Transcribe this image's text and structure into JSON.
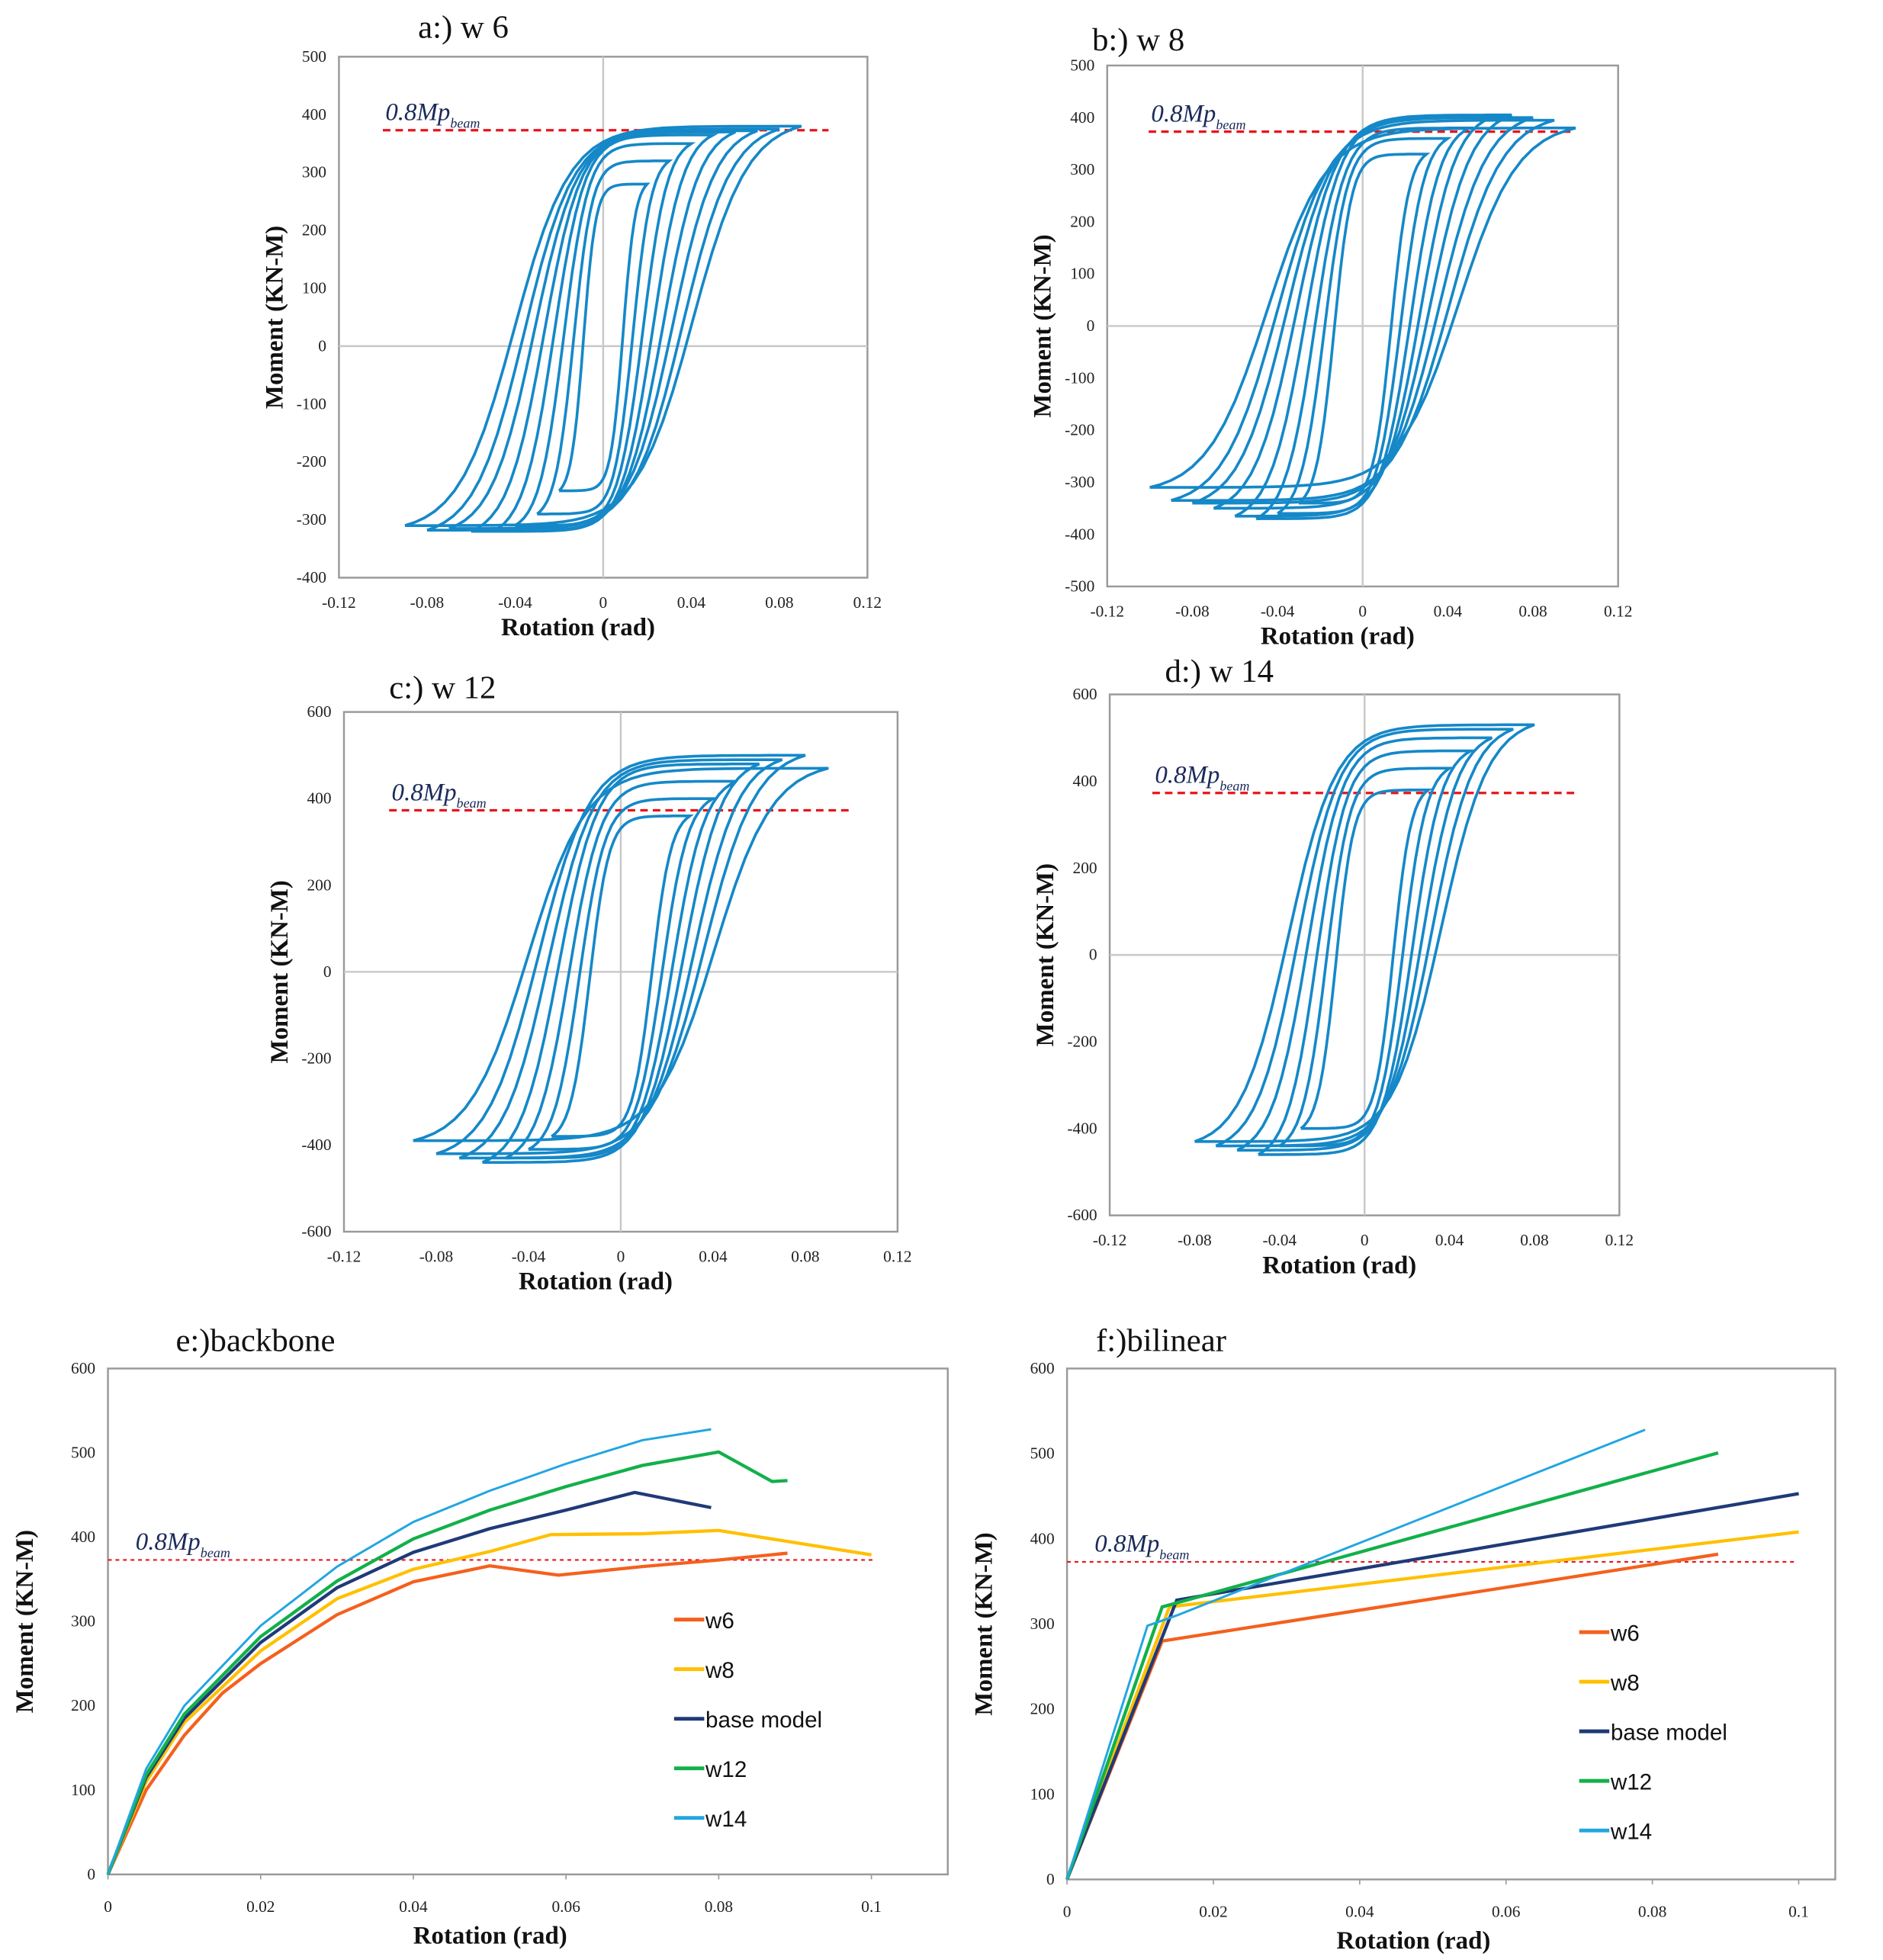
{
  "chart_data": [
    {
      "id": "a",
      "type": "line",
      "title": "a:) w 6",
      "xlabel": "Rotation (rad)",
      "ylabel": "Moment (KN-M)",
      "xlim": [
        -0.12,
        0.12
      ],
      "ylim": [
        -400,
        500
      ],
      "xticks": [
        -0.12,
        -0.08,
        -0.04,
        0,
        0.04,
        0.08,
        0.12
      ],
      "yticks": [
        -400,
        -300,
        -200,
        -100,
        0,
        100,
        200,
        300,
        400,
        500
      ],
      "reference": {
        "label": "0.8Mp",
        "subscript": "beam",
        "value": 373
      },
      "color": "#1588c8",
      "cycles": {
        "amplitudes": [
          0.02,
          0.03,
          0.04,
          0.05,
          0.06,
          0.07,
          0.08,
          0.09
        ],
        "positive_peaks": [
          280,
          320,
          350,
          365,
          370,
          372,
          375,
          380
        ],
        "negative_peaks": [
          -250,
          -290,
          -310,
          -320,
          -320,
          -315,
          -318,
          -310
        ]
      }
    },
    {
      "id": "b",
      "type": "line",
      "title": "b:) w 8",
      "xlabel": "Rotation (rad)",
      "ylabel": "Moment (KN-M)",
      "xlim": [
        -0.12,
        0.12
      ],
      "ylim": [
        -500,
        500
      ],
      "xticks": [
        -0.12,
        -0.08,
        -0.04,
        0,
        0.04,
        0.08,
        0.12
      ],
      "yticks": [
        -500,
        -400,
        -300,
        -200,
        -100,
        0,
        100,
        200,
        300,
        400,
        500
      ],
      "reference": {
        "label": "0.8Mp",
        "subscript": "beam",
        "value": 373
      },
      "color": "#1588c8",
      "cycles": {
        "amplitudes": [
          0.03,
          0.04,
          0.05,
          0.06,
          0.07,
          0.08,
          0.09,
          0.1
        ],
        "positive_peaks": [
          330,
          360,
          380,
          400,
          405,
          400,
          395,
          380
        ],
        "negative_peaks": [
          -340,
          -360,
          -370,
          -365,
          -350,
          -340,
          -335,
          -310
        ]
      }
    },
    {
      "id": "c",
      "type": "line",
      "title": "c:) w 12",
      "xlabel": "Rotation  (rad)",
      "ylabel": "Moment (KN-M)",
      "xlim": [
        -0.12,
        0.12
      ],
      "ylim": [
        -600,
        600
      ],
      "xticks": [
        -0.12,
        -0.08,
        -0.04,
        0,
        0.04,
        0.08,
        0.12
      ],
      "yticks": [
        -600,
        -400,
        -200,
        0,
        200,
        400,
        600
      ],
      "reference": {
        "label": "0.8Mp",
        "subscript": "beam",
        "value": 373
      },
      "color": "#1588c8",
      "cycles": {
        "amplitudes": [
          0.03,
          0.04,
          0.05,
          0.06,
          0.07,
          0.08,
          0.09
        ],
        "positive_peaks": [
          360,
          400,
          440,
          480,
          490,
          500,
          470
        ],
        "negative_peaks": [
          -380,
          -410,
          -430,
          -440,
          -430,
          -420,
          -390
        ]
      }
    },
    {
      "id": "d",
      "type": "line",
      "title": "d:) w 14",
      "xlabel": "Rotation (rad)",
      "ylabel": "Moment (KN-M)",
      "xlim": [
        -0.12,
        0.12
      ],
      "ylim": [
        -600,
        600
      ],
      "xticks": [
        -0.12,
        -0.08,
        -0.04,
        0,
        0.04,
        0.08,
        0.12
      ],
      "yticks": [
        -600,
        -400,
        -200,
        0,
        200,
        400,
        600
      ],
      "reference": {
        "label": "0.8Mp",
        "subscript": "beam",
        "value": 373
      },
      "color": "#1588c8",
      "cycles": {
        "amplitudes": [
          0.03,
          0.04,
          0.05,
          0.06,
          0.07,
          0.08
        ],
        "positive_peaks": [
          380,
          430,
          470,
          500,
          520,
          530
        ],
        "negative_peaks": [
          -400,
          -440,
          -460,
          -450,
          -440,
          -430
        ]
      }
    },
    {
      "id": "e",
      "type": "line",
      "title": "e:)backbone",
      "xlabel": "Rotation (rad)",
      "ylabel": "Moment (KN-M)",
      "xlim": [
        0,
        0.11
      ],
      "ylim": [
        0,
        600
      ],
      "xticks": [
        0,
        0.02,
        0.04,
        0.06,
        0.08,
        0.1
      ],
      "yticks": [
        0,
        100,
        200,
        300,
        400,
        500,
        600
      ],
      "reference": {
        "label": "0.8Mp",
        "subscript": "beam",
        "value": 373
      },
      "legend": "right",
      "series": [
        {
          "name": "w6",
          "color": "#f4601e",
          "x": [
            0,
            0.005,
            0.01,
            0.015,
            0.02,
            0.03,
            0.04,
            0.05,
            0.059,
            0.07,
            0.08,
            0.089
          ],
          "y": [
            0,
            100,
            165,
            215,
            250,
            308,
            347,
            366,
            355,
            365,
            373,
            381
          ]
        },
        {
          "name": "w8",
          "color": "#ffc000",
          "x": [
            0,
            0.005,
            0.01,
            0.02,
            0.03,
            0.04,
            0.05,
            0.058,
            0.07,
            0.08,
            0.1
          ],
          "y": [
            0,
            110,
            180,
            265,
            327,
            362,
            383,
            403,
            404,
            408,
            379
          ]
        },
        {
          "name": "base model",
          "color": "#1f3a78",
          "x": [
            0,
            0.005,
            0.01,
            0.02,
            0.03,
            0.04,
            0.05,
            0.06,
            0.069,
            0.079
          ],
          "y": [
            0,
            115,
            185,
            275,
            340,
            382,
            410,
            432,
            453,
            435
          ]
        },
        {
          "name": "w12",
          "color": "#12b04a",
          "x": [
            0,
            0.005,
            0.01,
            0.02,
            0.03,
            0.04,
            0.05,
            0.06,
            0.07,
            0.08,
            0.087,
            0.089
          ],
          "y": [
            0,
            118,
            190,
            282,
            348,
            398,
            432,
            460,
            485,
            501,
            466,
            467
          ]
        },
        {
          "name": "w14",
          "color": "#21a6e0",
          "x": [
            0,
            0.005,
            0.01,
            0.02,
            0.03,
            0.04,
            0.05,
            0.06,
            0.07,
            0.079
          ],
          "y": [
            0,
            125,
            200,
            295,
            365,
            418,
            455,
            487,
            515,
            528
          ]
        }
      ]
    },
    {
      "id": "f",
      "type": "line",
      "title": "f:)bilinear",
      "xlabel": "Rotation (rad)",
      "ylabel": "Moment (KN-M)",
      "xlim": [
        0,
        0.105
      ],
      "ylim": [
        0,
        600
      ],
      "xticks": [
        0,
        0.02,
        0.04,
        0.06,
        0.08,
        0.1
      ],
      "yticks": [
        0,
        100,
        200,
        300,
        400,
        500,
        600
      ],
      "reference": {
        "label": "0.8Mp",
        "subscript": "beam",
        "value": 373
      },
      "legend": "right",
      "series": [
        {
          "name": "w6",
          "color": "#f4601e",
          "x": [
            0,
            0.013,
            0.089
          ],
          "y": [
            0,
            280,
            382
          ]
        },
        {
          "name": "w8",
          "color": "#ffc000",
          "x": [
            0,
            0.014,
            0.1
          ],
          "y": [
            0,
            320,
            408
          ]
        },
        {
          "name": "base model",
          "color": "#1f3a78",
          "x": [
            0,
            0.015,
            0.1
          ],
          "y": [
            0,
            328,
            453
          ]
        },
        {
          "name": "w12",
          "color": "#12b04a",
          "x": [
            0,
            0.013,
            0.089
          ],
          "y": [
            0,
            320,
            501
          ]
        },
        {
          "name": "w14",
          "color": "#21a6e0",
          "x": [
            0,
            0.011,
            0.015,
            0.079
          ],
          "y": [
            0,
            298,
            310,
            528
          ]
        }
      ]
    }
  ]
}
